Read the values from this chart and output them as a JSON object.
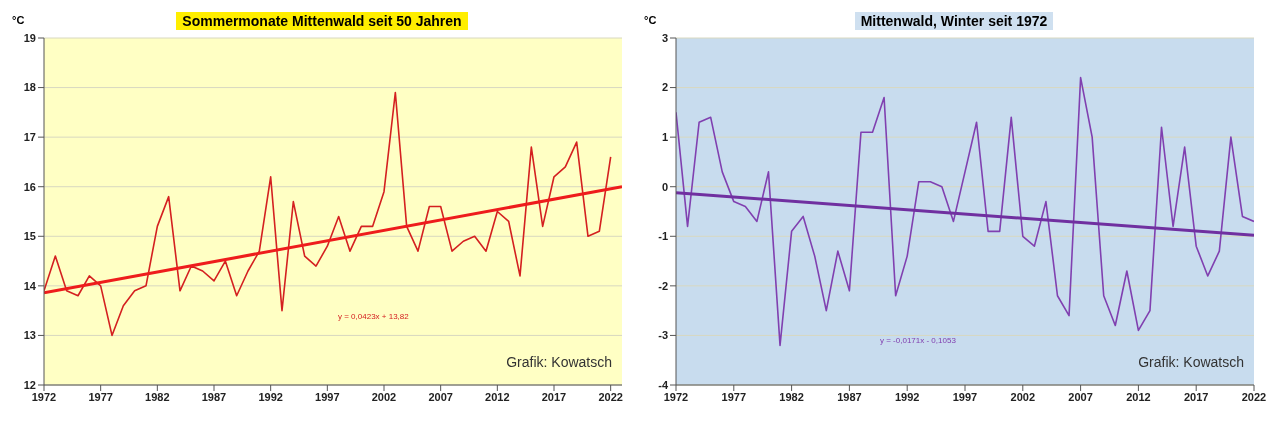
{
  "chart_data": [
    {
      "type": "line",
      "title": "Sommermonate  Mittenwald  seit 50 Jahren",
      "ylabel": "°C",
      "xlim": [
        1972,
        2023
      ],
      "xticks": [
        1972,
        1977,
        1982,
        1987,
        1992,
        1997,
        2002,
        2007,
        2012,
        2017,
        2022
      ],
      "ylim": [
        12,
        19
      ],
      "yticks": [
        12,
        13,
        14,
        15,
        16,
        17,
        18,
        19
      ],
      "grid": "y",
      "marker": "none",
      "line_style": "solid",
      "annotations": [
        "y = 0,0423x + 13,82",
        "Grafik: Kowatsch"
      ],
      "series": [
        {
          "color": "#d42020",
          "x": [
            1972,
            1973,
            1974,
            1975,
            1976,
            1977,
            1978,
            1979,
            1980,
            1981,
            1982,
            1983,
            1984,
            1985,
            1986,
            1987,
            1988,
            1989,
            1990,
            1991,
            1992,
            1993,
            1994,
            1995,
            1996,
            1997,
            1998,
            1999,
            2000,
            2001,
            2002,
            2003,
            2004,
            2005,
            2006,
            2007,
            2008,
            2009,
            2010,
            2011,
            2012,
            2013,
            2014,
            2015,
            2016,
            2017,
            2018,
            2019,
            2020,
            2021,
            2022
          ],
          "values": [
            13.9,
            14.6,
            13.9,
            13.8,
            14.2,
            14.0,
            13.0,
            13.6,
            13.9,
            14.0,
            15.2,
            15.8,
            13.9,
            14.4,
            14.3,
            14.1,
            14.5,
            13.8,
            14.3,
            14.7,
            16.2,
            13.5,
            15.7,
            14.6,
            14.4,
            14.8,
            15.4,
            14.7,
            15.2,
            15.2,
            15.9,
            17.9,
            15.2,
            14.7,
            15.6,
            15.6,
            14.7,
            14.9,
            15.0,
            14.7,
            15.5,
            15.3,
            14.2,
            16.8,
            15.2,
            16.2,
            16.4,
            16.9,
            15.0,
            15.1,
            16.6
          ]
        },
        {
          "color": "#ee1c1c",
          "x": [
            1972,
            2023
          ],
          "values": [
            13.86,
            16.0
          ]
        }
      ]
    },
    {
      "type": "line",
      "title": "Mittenwald, Winter seit 1972",
      "ylabel": "°C",
      "xlim": [
        1972,
        2022
      ],
      "xticks": [
        1972,
        1977,
        1982,
        1987,
        1992,
        1997,
        2002,
        2007,
        2012,
        2017,
        2022
      ],
      "ylim": [
        -4,
        3
      ],
      "yticks": [
        -4,
        -3,
        -2,
        -1,
        0,
        1,
        2,
        3
      ],
      "grid": "y",
      "marker": "none",
      "line_style": "solid",
      "annotations": [
        "y = -0,0171x - 0,1053",
        "Grafik: Kowatsch"
      ],
      "series": [
        {
          "color": "#8040b0",
          "x": [
            1972,
            1973,
            1974,
            1975,
            1976,
            1977,
            1978,
            1979,
            1980,
            1981,
            1982,
            1983,
            1984,
            1985,
            1986,
            1987,
            1988,
            1989,
            1990,
            1991,
            1992,
            1993,
            1994,
            1995,
            1996,
            1997,
            1998,
            1999,
            2000,
            2001,
            2002,
            2003,
            2004,
            2005,
            2006,
            2007,
            2008,
            2009,
            2010,
            2011,
            2012,
            2013,
            2014,
            2015,
            2016,
            2017,
            2018,
            2019,
            2020,
            2021,
            2022
          ],
          "values": [
            1.5,
            -0.8,
            1.3,
            1.4,
            0.3,
            -0.3,
            -0.4,
            -0.7,
            0.3,
            -3.2,
            -0.9,
            -0.6,
            -1.4,
            -2.5,
            -1.3,
            -2.1,
            1.1,
            1.1,
            1.8,
            -2.2,
            -1.4,
            0.1,
            0.1,
            0.0,
            -0.7,
            0.3,
            1.3,
            -0.9,
            -0.9,
            1.4,
            -1.0,
            -1.2,
            -0.3,
            -2.2,
            -2.6,
            2.2,
            1.0,
            -2.2,
            -2.8,
            -1.7,
            -2.9,
            -2.5,
            1.2,
            -0.8,
            0.8,
            -1.2,
            -1.8,
            -1.3,
            1.0,
            -0.6,
            -0.7
          ]
        },
        {
          "color": "#7030a0",
          "x": [
            1972,
            2022
          ],
          "values": [
            -0.12,
            -0.98
          ]
        }
      ]
    }
  ]
}
